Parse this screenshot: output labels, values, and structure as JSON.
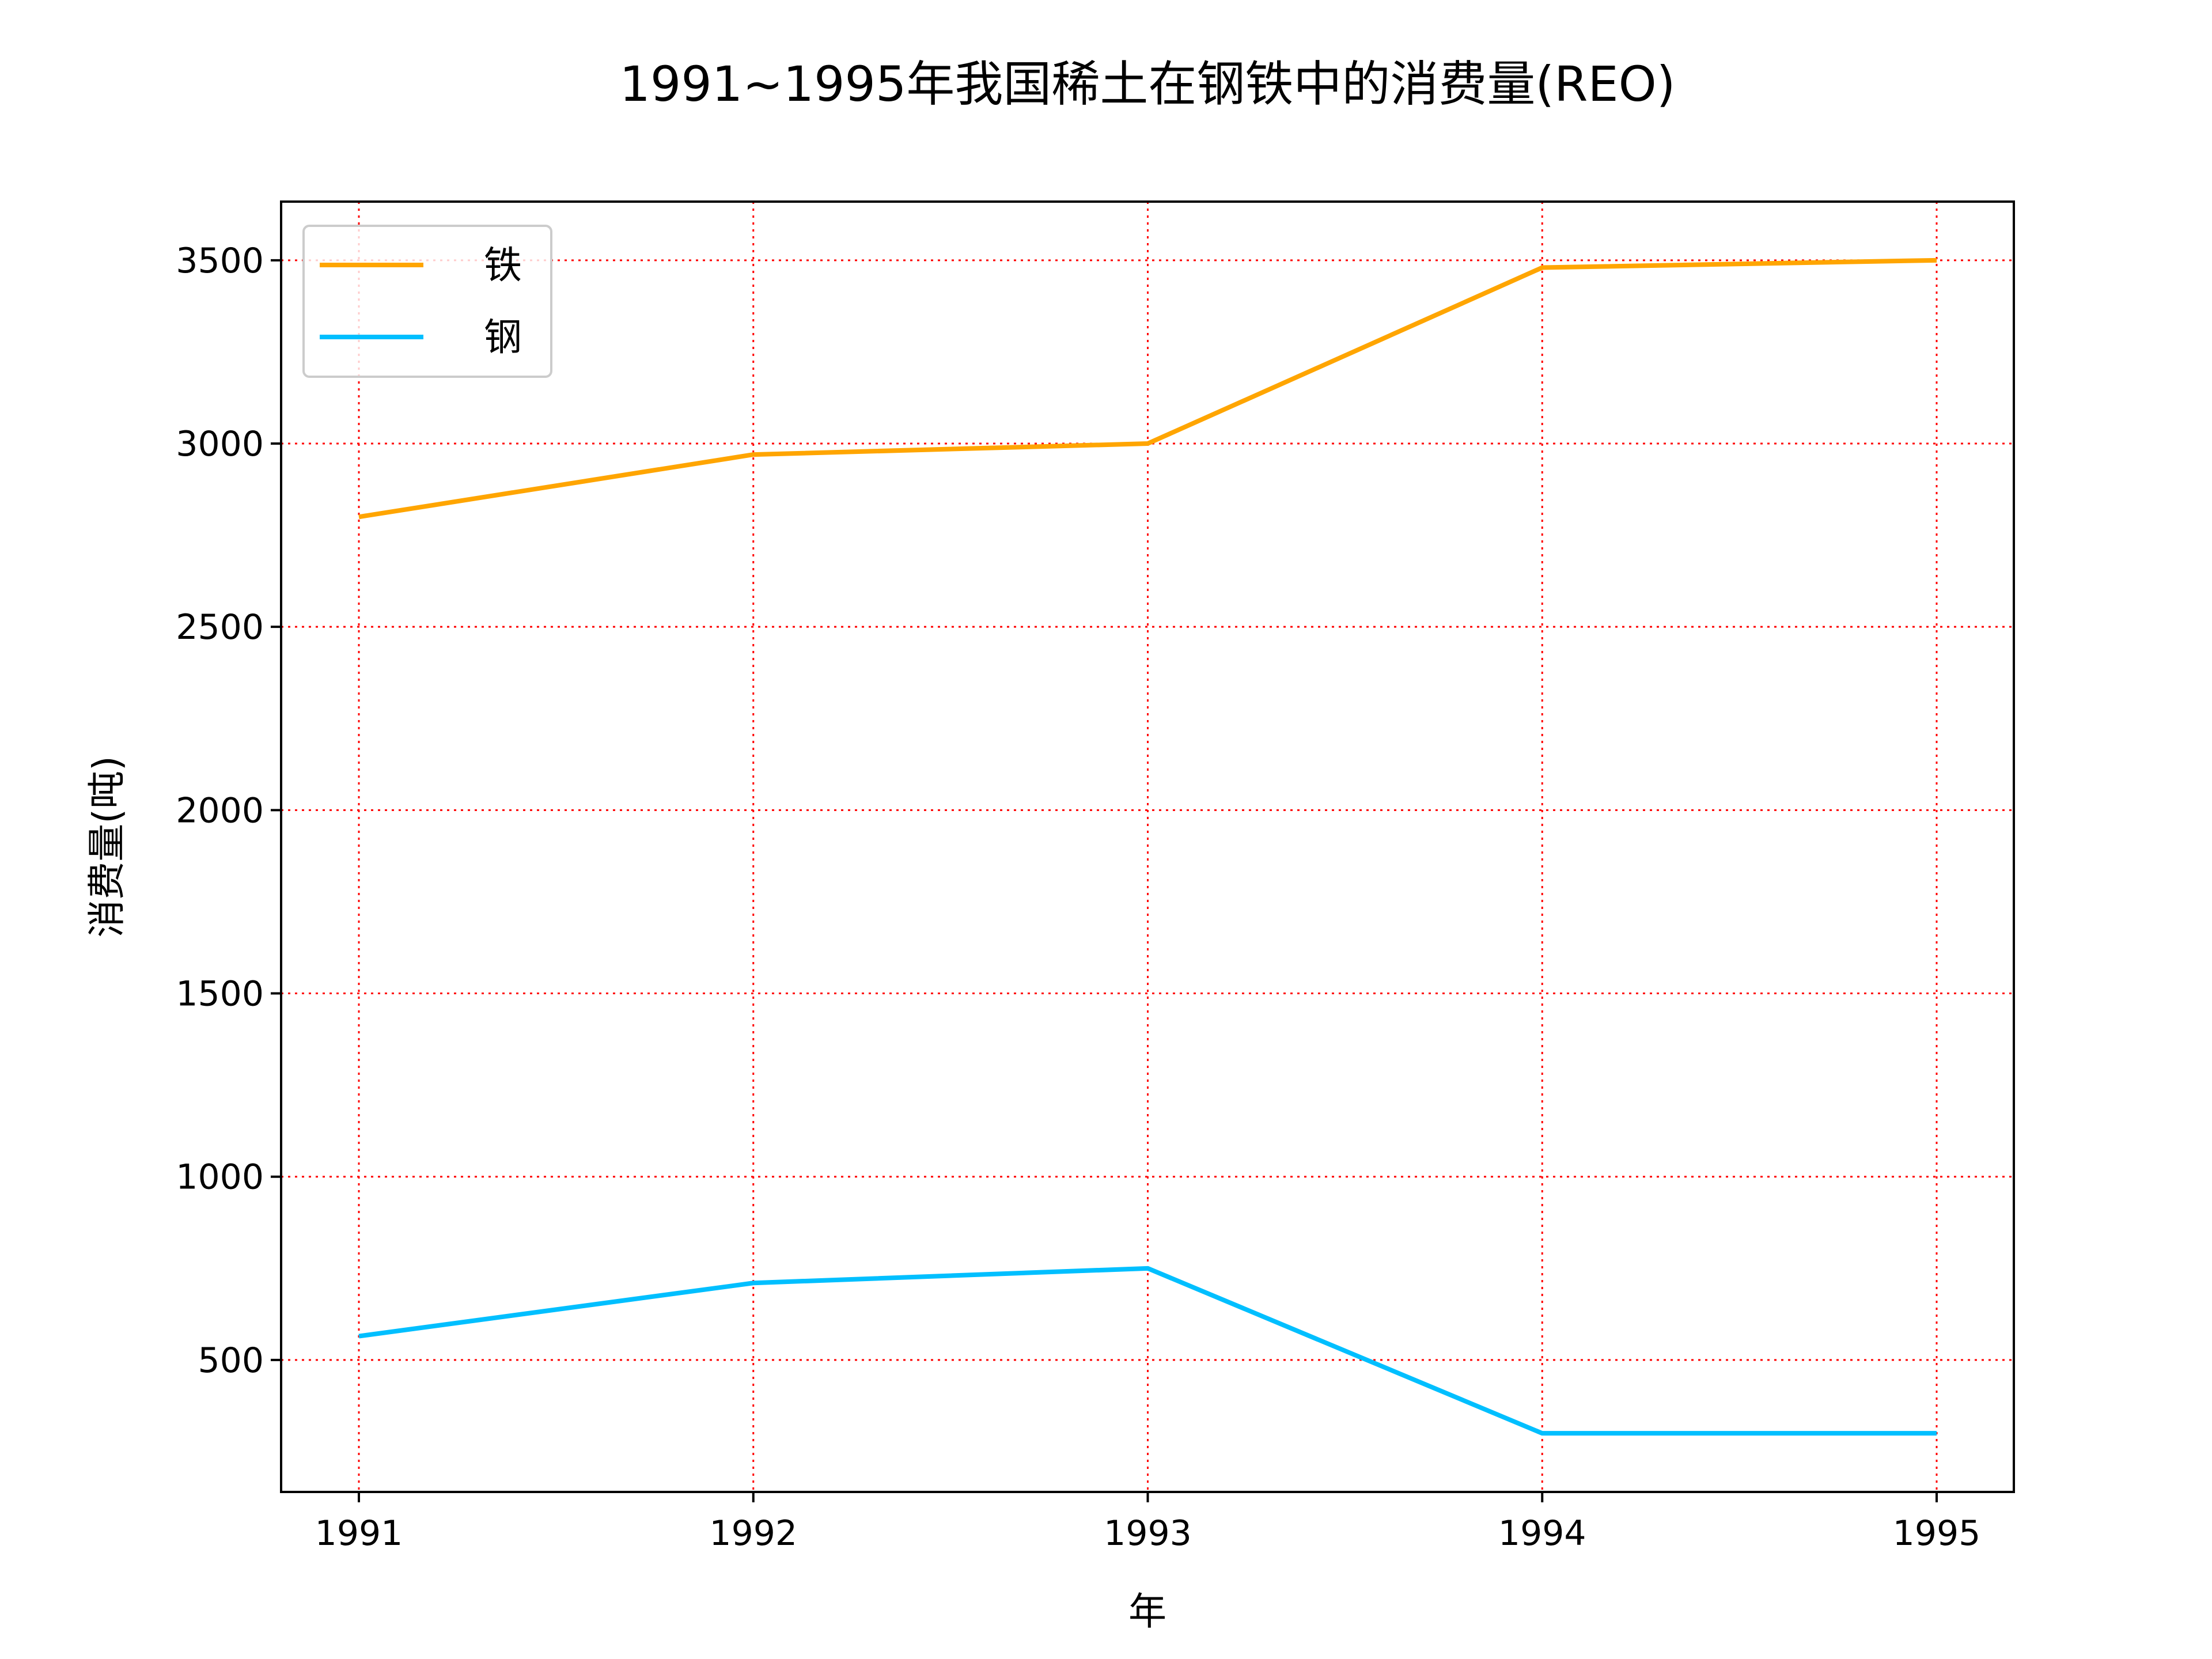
{
  "chart_data": {
    "type": "line",
    "title": "1991~1995年我国稀土在钢铁中的消费量(REO)",
    "xlabel": "年",
    "ylabel": "消费量(吨)",
    "categories": [
      "1991",
      "1992",
      "1993",
      "1994",
      "1995"
    ],
    "ylim": [
      140,
      3660
    ],
    "yticks": [
      500,
      1000,
      1500,
      2000,
      2500,
      3000,
      3500
    ],
    "grid": true,
    "grid_color": "#ff0000",
    "legend_position": "top-left",
    "series": [
      {
        "name": "铁",
        "color": "#ffa500",
        "values": [
          2800,
          2970,
          3000,
          3480,
          3500
        ]
      },
      {
        "name": "钢",
        "color": "#00bfff",
        "values": [
          565,
          710,
          750,
          300,
          300
        ]
      }
    ]
  }
}
